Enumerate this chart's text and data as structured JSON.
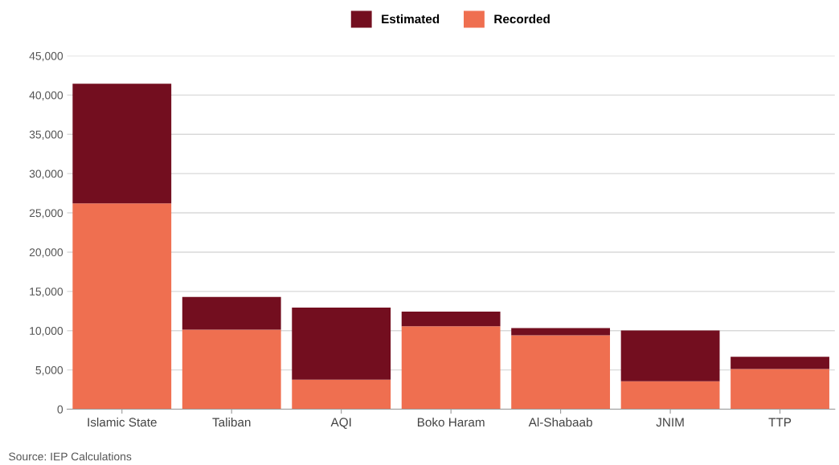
{
  "chart_data": {
    "type": "bar",
    "stacked": true,
    "categories": [
      "Islamic State",
      "Taliban",
      "AQI",
      "Boko Haram",
      "Al-Shabaab",
      "JNIM",
      "TTP"
    ],
    "series": [
      {
        "name": "Recorded",
        "color": "#ef6f50",
        "values": [
          26200,
          10130,
          3760,
          10550,
          9400,
          3550,
          5120
        ]
      },
      {
        "name": "Estimated",
        "color": "#730e1f",
        "values": [
          15250,
          4170,
          9190,
          1870,
          940,
          6470,
          1560
        ]
      }
    ],
    "ylim": [
      0,
      45000
    ],
    "yticks": [
      {
        "value": 0,
        "label": "0"
      },
      {
        "value": 5000,
        "label": "5,000"
      },
      {
        "value": 10000,
        "label": "10,000"
      },
      {
        "value": 15000,
        "label": "15,000"
      },
      {
        "value": 20000,
        "label": "20,000"
      },
      {
        "value": 25000,
        "label": "25,000"
      },
      {
        "value": 30000,
        "label": "30,000"
      },
      {
        "value": 35000,
        "label": "35,000"
      },
      {
        "value": 40000,
        "label": "40,000"
      },
      {
        "value": 45000,
        "label": "45,000"
      }
    ],
    "grid": "y",
    "legend": "top",
    "annotations": [
      "Source: IEP Calculations"
    ]
  }
}
